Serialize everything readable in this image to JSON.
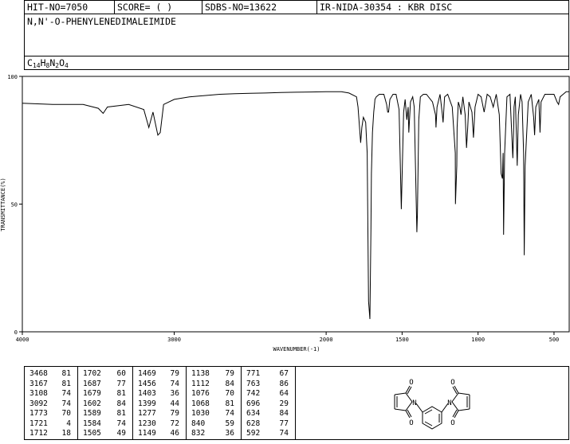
{
  "header": {
    "hit_no": "HIT-NO=7050",
    "score": "SCORE=  (   )",
    "sdbs_no": "SDBS-NO=13622",
    "source": "IR-NIDA-30354 : KBR DISC",
    "compound_name": "N,N'-O-PHENYLENEDIMALEIMIDE",
    "formula": {
      "c": "C",
      "c_n": "14",
      "h": "H",
      "h_n": "8",
      "n": "N",
      "n_n": "2",
      "o": "O",
      "o_n": "4"
    }
  },
  "chart_data": {
    "type": "line",
    "title": "",
    "xlabel": "WAVENUMBER(-1)",
    "ylabel": "TRANSMITTANCE(%)",
    "xlim": [
      4000,
      400
    ],
    "ylim": [
      0,
      100
    ],
    "x_ticks": [
      4000,
      3000,
      2000,
      1500,
      1000,
      500
    ],
    "x_tick_labels": [
      "4000",
      "3000",
      "2000",
      "1500",
      "1000",
      "500"
    ],
    "y_ticks": [
      100,
      50,
      0
    ],
    "y_tick_labels": [
      "100",
      "50",
      "0"
    ],
    "grid": false,
    "line_color": "#000000",
    "series": [
      {
        "x": [
          4000,
          3800,
          3600,
          3500,
          3468,
          3440,
          3300,
          3200,
          3167,
          3140,
          3108,
          3092,
          3070,
          3000,
          2900,
          2800,
          2700,
          2600,
          2500,
          2400,
          2300,
          2200,
          2100,
          2000,
          1950,
          1900,
          1850,
          1800,
          1790,
          1773,
          1765,
          1755,
          1740,
          1730,
          1721,
          1712,
          1705,
          1702,
          1695,
          1687,
          1680,
          1679,
          1670,
          1650,
          1620,
          1602,
          1595,
          1589,
          1580,
          1560,
          1540,
          1520,
          1505,
          1490,
          1480,
          1469,
          1460,
          1456,
          1445,
          1430,
          1420,
          1403,
          1399,
          1390,
          1380,
          1360,
          1340,
          1300,
          1280,
          1277,
          1270,
          1250,
          1235,
          1230,
          1220,
          1200,
          1170,
          1150,
          1149,
          1140,
          1138,
          1130,
          1120,
          1112,
          1100,
          1085,
          1076,
          1068,
          1060,
          1040,
          1030,
          1020,
          1000,
          980,
          960,
          940,
          920,
          900,
          880,
          860,
          848,
          840,
          835,
          832,
          825,
          810,
          790,
          771,
          765,
          763,
          755,
          742,
          735,
          720,
          710,
          700,
          696,
          690,
          670,
          650,
          634,
          628,
          620,
          600,
          592,
          585,
          560,
          540,
          520,
          500,
          480,
          470,
          460,
          440,
          420,
          400
        ],
        "y": [
          89.5,
          89.0,
          89.0,
          87.5,
          85.5,
          88.0,
          89.0,
          87.0,
          80.0,
          86.0,
          77.0,
          78.0,
          89.0,
          91.0,
          92.0,
          92.5,
          93.0,
          93.2,
          93.4,
          93.5,
          93.7,
          93.8,
          93.9,
          94.0,
          94.0,
          94.0,
          93.5,
          92.0,
          88.0,
          74.0,
          80.0,
          84.0,
          82.0,
          70.0,
          12.0,
          5.0,
          40.0,
          62.0,
          78.0,
          86.0,
          90.0,
          91.0,
          92.0,
          93.0,
          93.0,
          89.0,
          86.0,
          86.0,
          91.0,
          93.0,
          93.0,
          87.0,
          48.0,
          86.0,
          91.0,
          83.0,
          88.0,
          78.0,
          90.0,
          92.0,
          88.0,
          39.0,
          46.0,
          83.0,
          92.0,
          93.0,
          93.0,
          90.0,
          85.0,
          80.0,
          88.0,
          93.0,
          85.0,
          82.0,
          92.0,
          93.0,
          88.0,
          70.0,
          50.0,
          65.0,
          80.0,
          90.0,
          88.0,
          85.0,
          92.0,
          85.0,
          72.0,
          80.0,
          90.0,
          86.0,
          76.0,
          88.0,
          93.0,
          92.0,
          86.0,
          93.0,
          92.0,
          88.0,
          93.0,
          85.0,
          62.0,
          60.0,
          70.0,
          38.0,
          70.0,
          92.0,
          93.0,
          68.0,
          80.0,
          88.0,
          92.0,
          65.0,
          85.0,
          93.0,
          90.0,
          70.0,
          30.0,
          65.0,
          90.0,
          93.0,
          84.0,
          77.0,
          88.0,
          91.0,
          78.0,
          90.0,
          93.0,
          93.0,
          93.0,
          93.0,
          90.0,
          89.0,
          92.0,
          93.0,
          94.0,
          94.0
        ]
      }
    ]
  },
  "peak_table": [
    [
      {
        "wn": "3468",
        "t": "81"
      },
      {
        "wn": "3167",
        "t": "81"
      },
      {
        "wn": "3108",
        "t": "74"
      },
      {
        "wn": "3092",
        "t": "74"
      },
      {
        "wn": "1773",
        "t": "70"
      },
      {
        "wn": "1721",
        "t": "4"
      },
      {
        "wn": "1712",
        "t": "18"
      }
    ],
    [
      {
        "wn": "1702",
        "t": "60"
      },
      {
        "wn": "1687",
        "t": "77"
      },
      {
        "wn": "1679",
        "t": "81"
      },
      {
        "wn": "1602",
        "t": "84"
      },
      {
        "wn": "1589",
        "t": "81"
      },
      {
        "wn": "1584",
        "t": "74"
      },
      {
        "wn": "1505",
        "t": "49"
      }
    ],
    [
      {
        "wn": "1469",
        "t": "79"
      },
      {
        "wn": "1456",
        "t": "74"
      },
      {
        "wn": "1403",
        "t": "36"
      },
      {
        "wn": "1399",
        "t": "44"
      },
      {
        "wn": "1277",
        "t": "79"
      },
      {
        "wn": "1230",
        "t": "72"
      },
      {
        "wn": "1149",
        "t": "46"
      }
    ],
    [
      {
        "wn": "1138",
        "t": "79"
      },
      {
        "wn": "1112",
        "t": "84"
      },
      {
        "wn": "1076",
        "t": "70"
      },
      {
        "wn": "1068",
        "t": "81"
      },
      {
        "wn": "1030",
        "t": "74"
      },
      {
        "wn": "840",
        "t": "59"
      },
      {
        "wn": "832",
        "t": "36"
      }
    ],
    [
      {
        "wn": "771",
        "t": "67"
      },
      {
        "wn": "763",
        "t": "86"
      },
      {
        "wn": "742",
        "t": "64"
      },
      {
        "wn": "696",
        "t": "29"
      },
      {
        "wn": "634",
        "t": "84"
      },
      {
        "wn": "628",
        "t": "77"
      },
      {
        "wn": "592",
        "t": "74"
      }
    ]
  ],
  "structure": {
    "atom_labels": [
      "O",
      "N",
      "O",
      "O",
      "N",
      "O"
    ]
  }
}
